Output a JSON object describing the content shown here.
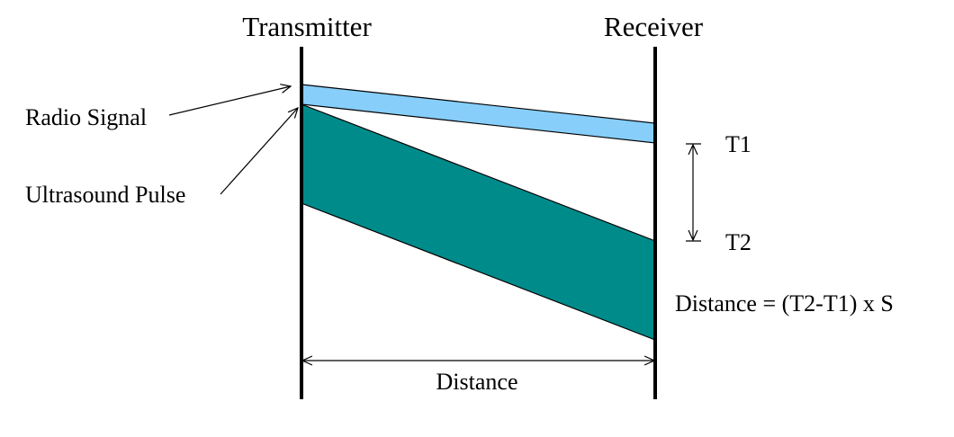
{
  "stations": {
    "transmitter": "Transmitter",
    "receiver": "Receiver"
  },
  "signals": {
    "radio": {
      "label": "Radio Signal",
      "color": "#87CEFA"
    },
    "ultrasound": {
      "label": "Ultrasound Pulse",
      "color": "#008B8B"
    }
  },
  "timing": {
    "t1": "T1",
    "t2": "T2"
  },
  "formula": "Distance = (T2-T1) x S",
  "distance_label": "Distance"
}
